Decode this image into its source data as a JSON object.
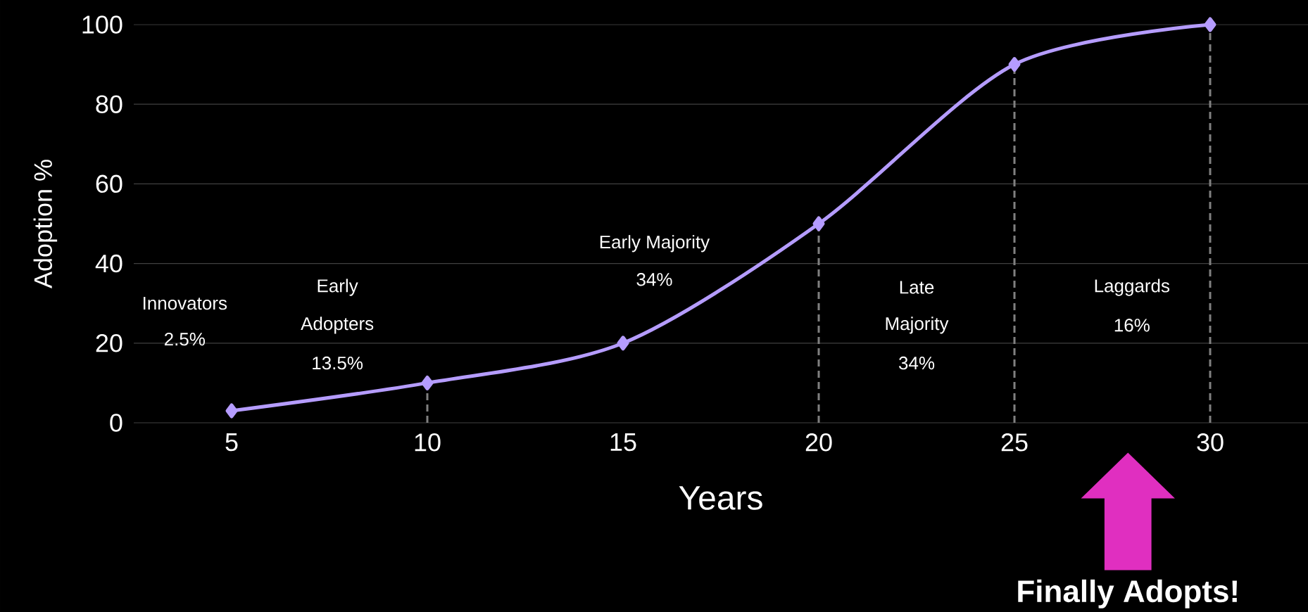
{
  "chart_data": {
    "type": "line",
    "xlabel": "Years",
    "ylabel": "Adoption %",
    "x": [
      5,
      10,
      15,
      20,
      25,
      30
    ],
    "series": [
      {
        "color": "#b59cff",
        "values": [
          3,
          10,
          20,
          50,
          90,
          100
        ]
      }
    ],
    "xlim": [
      2.5,
      32.5
    ],
    "ylim": [
      0,
      100
    ],
    "xticks": [
      5,
      10,
      15,
      20,
      25,
      30
    ],
    "yticks": [
      0,
      20,
      40,
      60,
      80,
      100
    ],
    "grid": "y",
    "marker": "diamond",
    "line_style": "solid",
    "ref_lines": [
      {
        "axis": "x",
        "value": 10,
        "color": "#808080",
        "line_style": "dashed"
      },
      {
        "axis": "x",
        "value": 20,
        "color": "#808080",
        "line_style": "dashed"
      },
      {
        "axis": "x",
        "value": 25,
        "color": "#808080",
        "line_style": "dashed"
      },
      {
        "axis": "x",
        "value": 30,
        "color": "#808080",
        "line_style": "dashed"
      }
    ],
    "annotations": [
      "Innovators",
      "2.5%",
      "Early",
      "Adopters",
      "13.5%",
      "Early Majority",
      "34%",
      "Late",
      "Majority",
      "34%",
      "Laggards",
      "16%",
      "**Finally Adopts!**"
    ]
  }
}
